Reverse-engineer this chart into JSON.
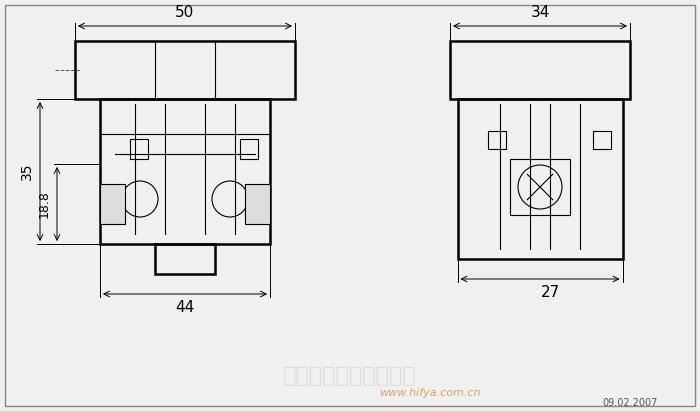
{
  "bg_color": "#f0f0f0",
  "line_color": "#000000",
  "dim_color": "#000000",
  "watermark_color_cn": "#cccccc",
  "watermark_color_url": "#cc8833",
  "date_text": "09.02.2007",
  "url_text": "www.hifya.com.cn",
  "cn_watermark": "广州铜盛电子有限公司",
  "dim_top_left": "50",
  "dim_top_right": "34",
  "dim_left_outer": "35",
  "dim_left_inner": "18.8",
  "dim_bottom_left": "44",
  "dim_bottom_right": "27",
  "figsize": [
    7.0,
    4.11
  ],
  "dpi": 100
}
